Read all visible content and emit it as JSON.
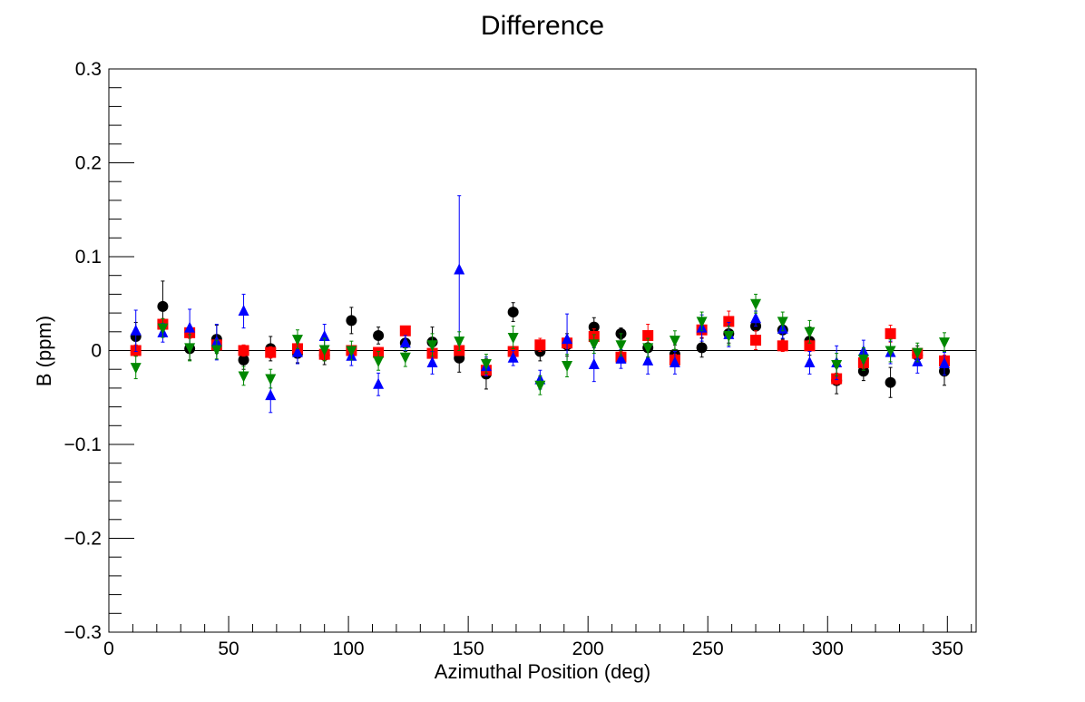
{
  "chart_data": {
    "type": "scatter",
    "title": "Difference",
    "xlabel": "Azimuthal Position (deg)",
    "ylabel": "B (ppm)",
    "xlim": [
      0,
      362
    ],
    "ylim": [
      -0.3,
      0.3
    ],
    "xticks": [
      0,
      50,
      100,
      150,
      200,
      250,
      300,
      350
    ],
    "xtick_labels": [
      "0",
      "50",
      "100",
      "150",
      "200",
      "250",
      "300",
      "350"
    ],
    "yticks": [
      -0.3,
      -0.2,
      -0.1,
      0,
      0.1,
      0.2,
      0.3
    ],
    "ytick_labels": [
      "−0.3",
      "−0.2",
      "−0.1",
      "0",
      "0.1",
      "0.2",
      "0.3"
    ],
    "reference_line_y": 0,
    "grid": false,
    "legend": null,
    "x": [
      11.25,
      22.5,
      33.75,
      45,
      56.25,
      67.5,
      78.75,
      90,
      101.25,
      112.5,
      123.75,
      135,
      146.25,
      157.5,
      168.75,
      180,
      191.25,
      202.5,
      213.75,
      225,
      236.25,
      247.5,
      258.75,
      270,
      281.25,
      292.5,
      303.75,
      315,
      326.25,
      337.5,
      348.75
    ],
    "series": [
      {
        "marker": "circle",
        "color": "#000000",
        "values": [
          0.015,
          0.047,
          0.002,
          0.012,
          -0.01,
          0.002,
          -0.003,
          -0.005,
          0.032,
          0.016,
          0.008,
          0.009,
          -0.008,
          -0.025,
          0.041,
          -0.001,
          0.006,
          0.025,
          0.018,
          0.003,
          -0.004,
          0.003,
          0.018,
          0.026,
          0.022,
          0.01,
          -0.032,
          -0.022,
          -0.034,
          -0.005,
          -0.022
        ],
        "errors": [
          0.015,
          0.027,
          0.012,
          0.015,
          0.01,
          0.013,
          0.01,
          0.01,
          0.014,
          0.009,
          0.009,
          0.016,
          0.015,
          0.016,
          0.01,
          0.01,
          0.012,
          0.01,
          0.006,
          0.01,
          0.01,
          0.01,
          0.01,
          0.01,
          0.01,
          0.015,
          0.014,
          0.01,
          0.016,
          0.01,
          0.015
        ]
      },
      {
        "marker": "square",
        "color": "#ff0000",
        "values": [
          0.0,
          0.028,
          0.019,
          0.006,
          0.0,
          -0.002,
          0.002,
          -0.004,
          0.0,
          -0.002,
          0.021,
          -0.003,
          0.0,
          -0.021,
          -0.001,
          0.006,
          0.008,
          0.015,
          -0.007,
          0.016,
          -0.01,
          0.022,
          0.031,
          0.011,
          0.005,
          0.005,
          -0.03,
          -0.013,
          0.018,
          -0.003,
          -0.011
        ],
        "errors": [
          0.006,
          0.006,
          0.006,
          0.006,
          0.006,
          0.006,
          0.006,
          0.006,
          0.005,
          0.005,
          0.005,
          0.005,
          0.005,
          0.006,
          0.005,
          0.007,
          0.006,
          0.008,
          0.006,
          0.012,
          0.006,
          0.008,
          0.011,
          0.01,
          0.006,
          0.006,
          0.006,
          0.006,
          0.009,
          0.005,
          0.006
        ]
      },
      {
        "marker": "triangle-up",
        "color": "#0000ff",
        "values": [
          0.021,
          0.019,
          0.024,
          0.009,
          0.042,
          -0.048,
          -0.002,
          0.015,
          -0.006,
          -0.036,
          0.008,
          -0.013,
          0.086,
          -0.017,
          -0.008,
          -0.031,
          0.012,
          -0.015,
          -0.009,
          -0.011,
          -0.013,
          0.024,
          0.017,
          0.034,
          0.023,
          -0.013,
          -0.013,
          -0.001,
          -0.002,
          -0.012,
          -0.014
        ],
        "errors": [
          0.022,
          0.01,
          0.02,
          0.019,
          0.018,
          0.018,
          0.012,
          0.013,
          0.01,
          0.012,
          0.008,
          0.012,
          0.079,
          0.01,
          0.008,
          0.01,
          0.027,
          0.018,
          0.01,
          0.014,
          0.012,
          0.014,
          0.013,
          0.008,
          0.01,
          0.012,
          0.018,
          0.012,
          0.012,
          0.012,
          0.012
        ]
      },
      {
        "marker": "triangle-down",
        "color": "#008800",
        "values": [
          -0.018,
          0.024,
          0.003,
          0.001,
          -0.027,
          -0.03,
          0.012,
          0.001,
          0.0,
          -0.011,
          -0.007,
          0.006,
          0.01,
          -0.014,
          0.014,
          -0.037,
          -0.016,
          0.007,
          0.006,
          0.003,
          0.011,
          0.031,
          0.016,
          0.05,
          0.031,
          0.02,
          -0.015,
          -0.009,
          0.0,
          -0.002,
          0.009
        ],
        "errors": [
          0.012,
          0.01,
          0.014,
          0.01,
          0.01,
          0.01,
          0.01,
          0.012,
          0.01,
          0.01,
          0.01,
          0.012,
          0.01,
          0.01,
          0.012,
          0.01,
          0.012,
          0.01,
          0.012,
          0.01,
          0.01,
          0.01,
          0.01,
          0.01,
          0.01,
          0.012,
          0.012,
          0.012,
          0.012,
          0.01,
          0.01
        ]
      }
    ]
  }
}
